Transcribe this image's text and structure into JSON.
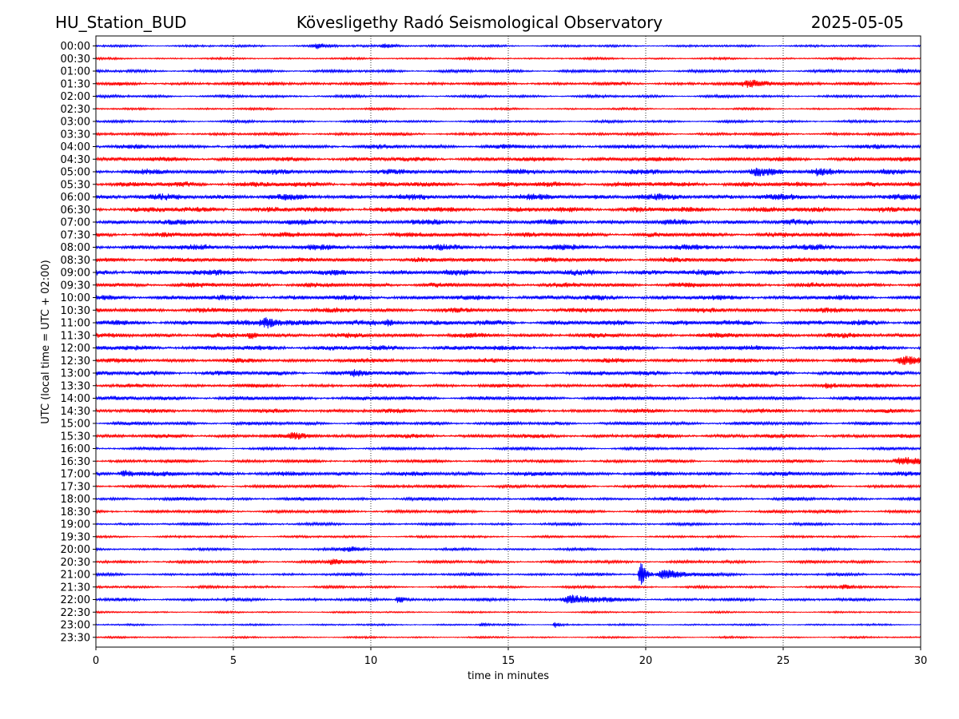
{
  "header": {
    "station": "HU_Station_BUD",
    "observatory": "Kövesligethy Radó Seismological Observatory",
    "date": "2025-05-05"
  },
  "chart_data": {
    "type": "line",
    "title": "Kövesligethy Radó Seismological Observatory",
    "xlabel": "time in minutes",
    "ylabel": "UTC (local time = UTC + 02:00)",
    "xlim": [
      0,
      30
    ],
    "xticks": [
      "0",
      "5",
      "10",
      "15",
      "20",
      "25",
      "30"
    ],
    "grid": "vertical dotted at x ticks",
    "colors": {
      "even_rows": "#0000ff",
      "odd_rows": "#ff0000"
    },
    "rows": [
      "00:00",
      "00:30",
      "01:00",
      "01:30",
      "02:00",
      "02:30",
      "03:00",
      "03:30",
      "04:00",
      "04:30",
      "05:00",
      "05:30",
      "06:00",
      "06:30",
      "07:00",
      "07:30",
      "08:00",
      "08:30",
      "09:00",
      "09:30",
      "10:00",
      "10:30",
      "11:00",
      "11:30",
      "12:00",
      "12:30",
      "13:00",
      "13:30",
      "14:00",
      "14:30",
      "15:00",
      "15:30",
      "16:00",
      "16:30",
      "17:00",
      "17:30",
      "18:00",
      "18:30",
      "19:00",
      "19:30",
      "20:00",
      "20:30",
      "21:00",
      "21:30",
      "22:00",
      "22:30",
      "23:00",
      "23:30"
    ],
    "noise_level": [
      0.18,
      0.16,
      0.24,
      0.26,
      0.22,
      0.16,
      0.2,
      0.24,
      0.34,
      0.36,
      0.4,
      0.42,
      0.46,
      0.44,
      0.42,
      0.4,
      0.44,
      0.38,
      0.44,
      0.38,
      0.4,
      0.38,
      0.42,
      0.38,
      0.4,
      0.34,
      0.38,
      0.3,
      0.34,
      0.32,
      0.28,
      0.32,
      0.24,
      0.26,
      0.36,
      0.28,
      0.26,
      0.26,
      0.22,
      0.18,
      0.2,
      0.24,
      0.22,
      0.2,
      0.24,
      0.14,
      0.14,
      0.14
    ],
    "events": [
      {
        "row": "00:00",
        "x": 8.0,
        "dur": 0.6,
        "amp": 0.45
      },
      {
        "row": "00:00",
        "x": 10.5,
        "dur": 0.8,
        "amp": 0.35
      },
      {
        "row": "01:00",
        "x": 29.3,
        "dur": 1.2,
        "amp": 0.4
      },
      {
        "row": "01:30",
        "x": 6.4,
        "dur": 0.6,
        "amp": 0.3
      },
      {
        "row": "01:30",
        "x": 23.8,
        "dur": 1.6,
        "amp": 0.55
      },
      {
        "row": "05:00",
        "x": 24.0,
        "dur": 0.8,
        "amp": 0.5
      },
      {
        "row": "05:00",
        "x": 26.2,
        "dur": 1.2,
        "amp": 0.45
      },
      {
        "row": "11:00",
        "x": 6.2,
        "dur": 1.2,
        "amp": 0.8
      },
      {
        "row": "11:00",
        "x": 10.6,
        "dur": 0.8,
        "amp": 0.4
      },
      {
        "row": "11:30",
        "x": 5.6,
        "dur": 0.4,
        "amp": 0.5
      },
      {
        "row": "12:30",
        "x": 29.4,
        "dur": 1.2,
        "amp": 0.7
      },
      {
        "row": "13:00",
        "x": 9.4,
        "dur": 0.6,
        "amp": 0.4
      },
      {
        "row": "13:30",
        "x": 26.6,
        "dur": 0.8,
        "amp": 0.45
      },
      {
        "row": "15:30",
        "x": 7.2,
        "dur": 1.0,
        "amp": 0.4
      },
      {
        "row": "16:30",
        "x": 29.3,
        "dur": 1.2,
        "amp": 0.6
      },
      {
        "row": "17:00",
        "x": 1.0,
        "dur": 0.8,
        "amp": 0.55
      },
      {
        "row": "20:00",
        "x": 9.2,
        "dur": 1.0,
        "amp": 0.4
      },
      {
        "row": "20:30",
        "x": 8.6,
        "dur": 0.8,
        "amp": 0.5
      },
      {
        "row": "21:00",
        "x": 19.8,
        "dur": 0.3,
        "amp": 2.4
      },
      {
        "row": "21:00",
        "x": 20.7,
        "dur": 1.2,
        "amp": 0.8
      },
      {
        "row": "21:30",
        "x": 27.2,
        "dur": 0.6,
        "amp": 0.35
      },
      {
        "row": "22:00",
        "x": 11.0,
        "dur": 0.4,
        "amp": 0.7
      },
      {
        "row": "22:00",
        "x": 17.3,
        "dur": 1.6,
        "amp": 0.7
      },
      {
        "row": "23:00",
        "x": 16.7,
        "dur": 0.3,
        "amp": 0.5
      },
      {
        "row": "23:00",
        "x": 14.0,
        "dur": 0.3,
        "amp": 0.3
      }
    ]
  }
}
